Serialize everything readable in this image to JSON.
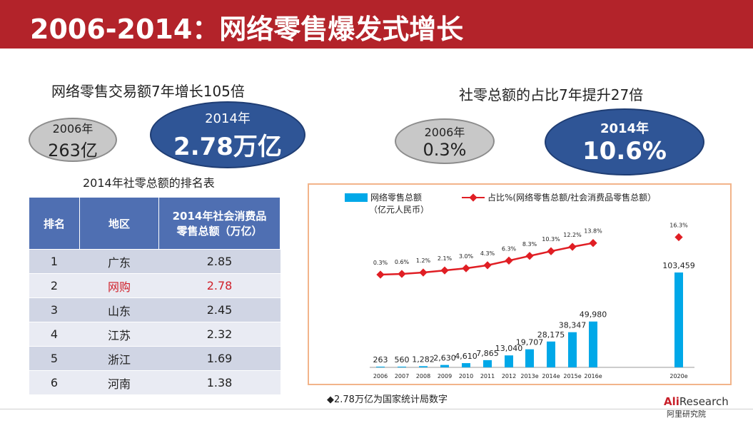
{
  "slide": {
    "title": "2006-2014：网络零售爆发式增长",
    "left_heading": "网络零售交易额7年增长105倍",
    "right_heading": "社零总额的占比7年提升27倍",
    "left_grey": {
      "year": "2006年",
      "value": "263亿"
    },
    "left_blue": {
      "year": "2014年",
      "value": "2.78万亿"
    },
    "right_grey": {
      "year": "2006年",
      "value": "0.3%"
    },
    "right_blue": {
      "year": "2014年",
      "value": "10.6%"
    },
    "table_title": "2014年社零总额的排名表",
    "note": "◆2.78万亿为国家统计局数字",
    "logo_top": "Research",
    "logo_ali": "Ali",
    "logo_bottom": "阿里研究院",
    "colors": {
      "title_bar": "#b3232a",
      "blue_ellipse": "#2f5596",
      "bar": "#00a8e8",
      "line": "#e01e24",
      "table_header": "#4f6fb2"
    }
  },
  "table": {
    "headers": [
      "排名",
      "地区",
      "2014年社会消费品零售总额（万亿）"
    ],
    "rows": [
      {
        "rank": "1",
        "region": "广东",
        "value": "2.85"
      },
      {
        "rank": "2",
        "region": "网购",
        "value": "2.78"
      },
      {
        "rank": "3",
        "region": "山东",
        "value": "2.45"
      },
      {
        "rank": "4",
        "region": "江苏",
        "value": "2.32"
      },
      {
        "rank": "5",
        "region": "浙江",
        "value": "1.69"
      },
      {
        "rank": "6",
        "region": "河南",
        "value": "1.38"
      }
    ]
  },
  "chart_data": {
    "type": "bar",
    "legend_bar": "网络零售总额",
    "legend_bar_unit": "（亿元人民币）",
    "legend_line": "占比%(网络零售总额/社会消费品零售总额）",
    "categories": [
      "2006",
      "2007",
      "2008",
      "2009",
      "2010",
      "2011",
      "2012",
      "2013e",
      "2014e",
      "2015e",
      "2016e",
      "2020e"
    ],
    "series": [
      {
        "name": "网络零售总额",
        "type": "bar",
        "values": [
          263,
          560,
          1282,
          2630,
          4610,
          7865,
          13040,
          19707,
          28175,
          38347,
          49980,
          103459
        ],
        "labels": [
          "263",
          "560",
          "1,282",
          "2,630",
          "4,610",
          "7,865",
          "13,040",
          "19,707",
          "28,175",
          "38,347",
          "49,980",
          "103,459"
        ]
      },
      {
        "name": "占比%(网络零售总额/社会消费品零售总额）",
        "type": "line",
        "values": [
          0.3,
          0.6,
          1.2,
          2.1,
          3.0,
          4.3,
          6.3,
          8.3,
          10.3,
          12.2,
          13.8,
          16.3
        ],
        "labels": [
          "0.3%",
          "0.6%",
          "1.2%",
          "2.1%",
          "3.0%",
          "4.3%",
          "6.3%",
          "8.3%",
          "10.3%",
          "12.2%",
          "13.8%",
          "16.3%"
        ]
      }
    ],
    "xlabel": "",
    "ylabel": ""
  }
}
